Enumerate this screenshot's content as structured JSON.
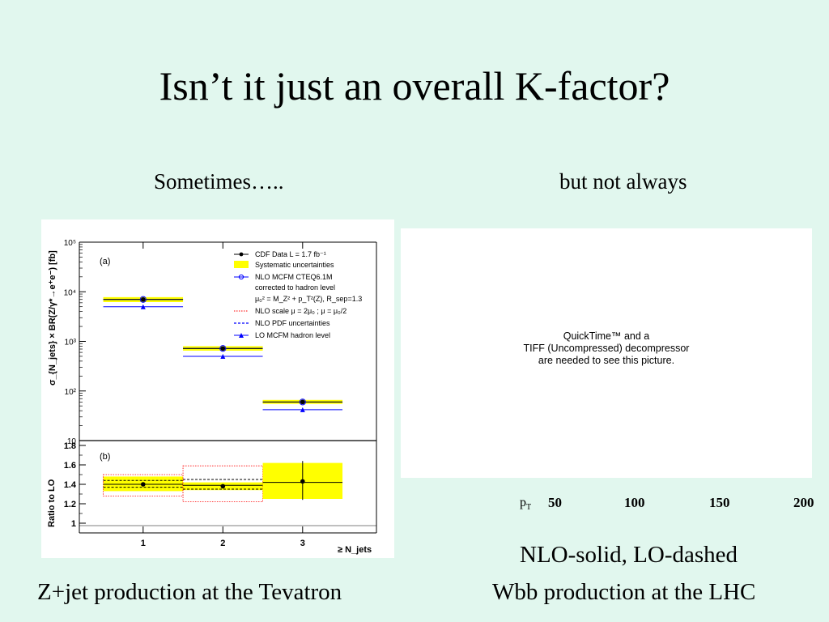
{
  "slide": {
    "title": "Isn’t it just an overall K-factor?",
    "left_heading": "Sometimes…..",
    "right_heading": "but not always",
    "left_caption": "Z+jet production at the Tevatron",
    "right_caption_line1": "NLO-solid, LO-dashed",
    "right_caption_line2": "Wbb production at the LHC"
  },
  "placeholder": {
    "line1": "QuickTime™ and a",
    "line2": "TIFF (Uncompressed) decompressor",
    "line3": "are needed to see this picture."
  },
  "pt_axis": {
    "label_main": "p",
    "label_sub": "T",
    "ticks": [
      "50",
      "100",
      "150",
      "200"
    ]
  },
  "colors": {
    "background": "#e1f7ee",
    "band": "#ffff00",
    "lo": "#0000ff",
    "nlo_scale": "#ff0000"
  },
  "chart_data": [
    {
      "type": "scatter",
      "panel": "(a)",
      "ylabel": "σ_{N_jets} × BR(Z/γ*→e⁺e⁻) [fb]",
      "yscale": "log",
      "ylim": [
        10,
        100000
      ],
      "yticks": [
        "10",
        "10²",
        "10³",
        "10⁴",
        "10⁵"
      ],
      "xlabel": "≥ N_jets",
      "categories": [
        "1",
        "2",
        "3"
      ],
      "legend": [
        "CDF Data  L = 1.7 fb⁻¹",
        "Systematic uncertainties",
        "NLO MCFM CTEQ6.1M",
        "corrected to hadron level",
        "μ₀² = M_Z² + p_T²(Z), R_sep=1.3",
        "NLO scale μ = 2μ₀ ; μ = μ₀/2",
        "NLO PDF uncertainties",
        "LO MCFM hadron level"
      ],
      "legend_position": "top-right",
      "series": [
        {
          "name": "CDF Data  L = 1.7 fb⁻¹",
          "values": [
            7000,
            720,
            60
          ]
        },
        {
          "name": "Systematic uncertainties",
          "low": [
            6200,
            650,
            55
          ],
          "high": [
            7800,
            800,
            66
          ]
        },
        {
          "name": "NLO MCFM CTEQ6.1M",
          "values": [
            7000,
            720,
            60
          ]
        },
        {
          "name": "LO MCFM hadron level",
          "values": [
            5000,
            500,
            42
          ]
        }
      ]
    },
    {
      "type": "scatter",
      "panel": "(b)",
      "ylabel": "Ratio to LO",
      "ylim": [
        0.9,
        1.85
      ],
      "yticks": [
        "1",
        "1.2",
        "1.4",
        "1.6",
        "1.8"
      ],
      "xlabel": "≥ N_jets",
      "categories": [
        "1",
        "2",
        "3"
      ],
      "series": [
        {
          "name": "CDF Data",
          "values": [
            1.4,
            1.38,
            1.43
          ],
          "err_low": [
            0.02,
            0.02,
            0.19
          ],
          "err_high": [
            0.02,
            0.02,
            0.21
          ]
        },
        {
          "name": "Systematic uncertainties",
          "low": [
            1.33,
            1.34,
            1.25
          ],
          "high": [
            1.48,
            1.42,
            1.62
          ]
        },
        {
          "name": "NLO MCFM",
          "values": [
            1.4,
            1.39,
            1.42
          ]
        },
        {
          "name": "NLO scale",
          "low": [
            1.28,
            1.22,
            null
          ],
          "high": [
            1.5,
            1.59,
            null
          ]
        },
        {
          "name": "NLO PDF uncertainties",
          "low": [
            1.37,
            1.35,
            null
          ],
          "high": [
            1.44,
            1.45,
            null
          ]
        }
      ]
    }
  ]
}
